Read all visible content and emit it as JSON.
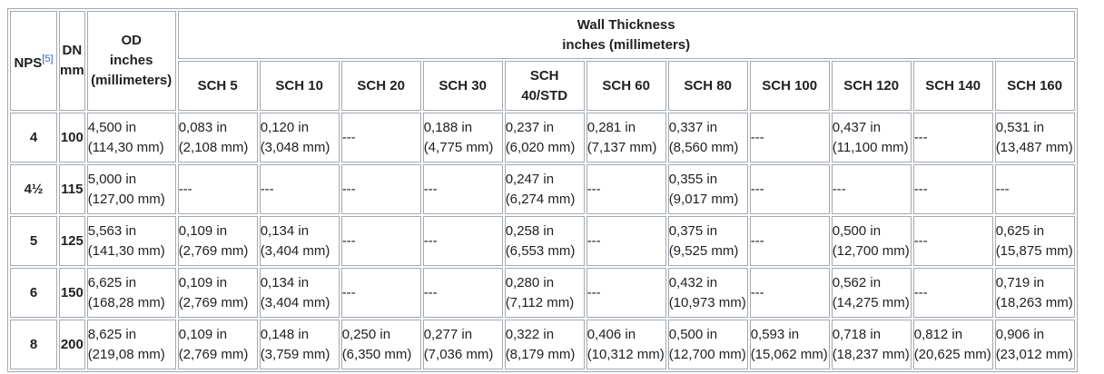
{
  "header": {
    "nps": {
      "text": "NPS",
      "ref": "[5]"
    },
    "dn": [
      "DN",
      "mm"
    ],
    "od": [
      "OD",
      "inches",
      "(millimeters)"
    ],
    "wall": [
      "Wall Thickness",
      "inches (millimeters)"
    ],
    "schedules": [
      "SCH 5",
      "SCH 10",
      "SCH 20",
      "SCH 30",
      [
        "SCH",
        "40/STD"
      ],
      "SCH 60",
      "SCH 80",
      "SCH 100",
      "SCH 120",
      "SCH 140",
      "SCH 160"
    ]
  },
  "rows": [
    {
      "nps": "4",
      "dn": "100",
      "od": [
        "4,500 in",
        "(114,30 mm)"
      ],
      "wall": [
        [
          "0,083 in",
          "(2,108 mm)"
        ],
        [
          "0,120 in",
          "(3,048 mm)"
        ],
        "---",
        [
          "0,188 in",
          "(4,775 mm)"
        ],
        [
          "0,237 in",
          "(6,020 mm)"
        ],
        [
          "0,281 in",
          "(7,137 mm)"
        ],
        [
          "0,337 in",
          "(8,560 mm)"
        ],
        "---",
        [
          "0,437 in",
          "(11,100 mm)"
        ],
        "---",
        [
          "0,531 in",
          "(13,487 mm)"
        ]
      ]
    },
    {
      "nps": "4½",
      "dn": "115",
      "od": [
        "5,000 in",
        "(127,00 mm)"
      ],
      "wall": [
        "---",
        "---",
        "---",
        "---",
        [
          "0,247 in",
          "(6,274 mm)"
        ],
        "---",
        [
          "0,355 in",
          "(9,017 mm)"
        ],
        "---",
        "---",
        "---",
        "---"
      ]
    },
    {
      "nps": "5",
      "dn": "125",
      "od": [
        "5,563 in",
        "(141,30 mm)"
      ],
      "wall": [
        [
          "0,109 in",
          "(2,769 mm)"
        ],
        [
          "0,134 in",
          "(3,404 mm)"
        ],
        "---",
        "---",
        [
          "0,258 in",
          "(6,553 mm)"
        ],
        "---",
        [
          "0,375 in",
          "(9,525 mm)"
        ],
        "---",
        [
          "0,500 in",
          "(12,700 mm)"
        ],
        "---",
        [
          "0,625 in",
          "(15,875 mm)"
        ]
      ]
    },
    {
      "nps": "6",
      "dn": "150",
      "od": [
        "6,625 in",
        "(168,28 mm)"
      ],
      "wall": [
        [
          "0,109 in",
          "(2,769 mm)"
        ],
        [
          "0,134 in",
          "(3,404 mm)"
        ],
        "---",
        "---",
        [
          "0,280 in",
          "(7,112 mm)"
        ],
        "---",
        [
          "0,432 in",
          "(10,973 mm)"
        ],
        "---",
        [
          "0,562 in",
          "(14,275 mm)"
        ],
        "---",
        [
          "0,719 in",
          "(18,263 mm)"
        ]
      ]
    },
    {
      "nps": "8",
      "dn": "200",
      "od": [
        "8,625 in",
        "(219,08 mm)"
      ],
      "wall": [
        [
          "0,109 in",
          "(2,769 mm)"
        ],
        [
          "0,148 in",
          "(3,759 mm)"
        ],
        [
          "0,250 in",
          "(6,350 mm)"
        ],
        [
          "0,277 in",
          "(7,036 mm)"
        ],
        [
          "0,322 in",
          "(8,179 mm)"
        ],
        [
          "0,406 in",
          "(10,312 mm)"
        ],
        [
          "0,500 in",
          "(12,700 mm)"
        ],
        [
          "0,593 in",
          "(15,062 mm)"
        ],
        [
          "0,718 in",
          "(18,237 mm)"
        ],
        [
          "0,812 in",
          "(20,625 mm)"
        ],
        [
          "0,906 in",
          "(23,012 mm)"
        ]
      ]
    }
  ]
}
